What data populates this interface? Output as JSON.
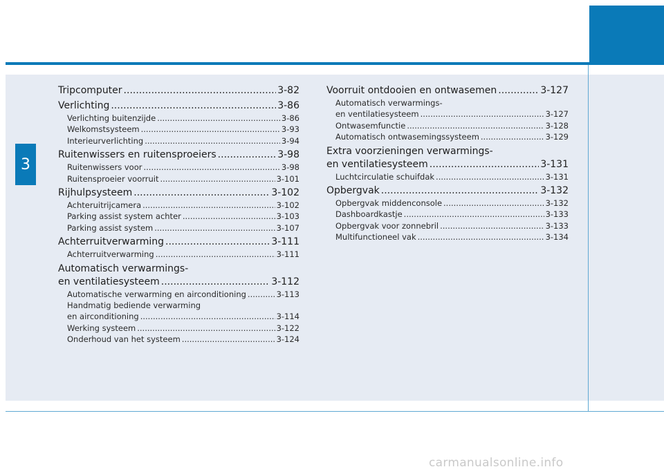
{
  "chapter": "3",
  "left": {
    "sections": [
      {
        "title": "Tripcomputer",
        "page": "3-82",
        "items": []
      },
      {
        "title": "Verlichting",
        "page": "3-86",
        "items": [
          {
            "title": "Verlichting buitenzijde",
            "page": "3-86"
          },
          {
            "title": "Welkomstsysteem",
            "page": "3-93"
          },
          {
            "title": "Interieurverlichting",
            "page": "3-94"
          }
        ]
      },
      {
        "title": "Ruitenwissers en ruitensproeiers",
        "page": "3-98",
        "items": [
          {
            "title": "Ruitenwissers voor",
            "page": "3-98"
          },
          {
            "title": "Ruitensproeier voorruit",
            "page": "3-101"
          }
        ]
      },
      {
        "title": "Rijhulpsysteem",
        "page": "3-102",
        "items": [
          {
            "title": "Achteruitrijcamera",
            "page": "3-102"
          },
          {
            "title": "Parking assist system achter",
            "page": "3-103"
          },
          {
            "title": "Parking assist system",
            "page": "3-107"
          }
        ]
      },
      {
        "title": "Achterruitverwarming",
        "page": "3-111",
        "items": [
          {
            "title": "Achterruitverwarming",
            "page": "3-111"
          }
        ]
      }
    ],
    "ventilation": {
      "title_line1": "Automatisch verwarmings-",
      "title_line2": "en ventilatiesysteem",
      "page": "3-112",
      "item1": {
        "title": "Automatische verwarming en airconditioning",
        "page": "3-113"
      },
      "item2_line1": "Handmatig bediende verwarming",
      "item2": {
        "title": "en airconditioning",
        "page": "3-114"
      },
      "item3": {
        "title": "Werking systeem",
        "page": "3-122"
      },
      "item4": {
        "title": "Onderhoud van het systeem",
        "page": "3-124"
      }
    }
  },
  "right": {
    "defrost": {
      "title": "Voorruit ontdooien en ontwasemen",
      "page": "3-127",
      "item1_line1": "Automatisch verwarmings-",
      "item1": {
        "title": "en ventilatiesysteem",
        "page": "3-127"
      },
      "item2": {
        "title": "Ontwasemfunctie",
        "page": "3-128"
      },
      "item3": {
        "title": "Automatisch ontwasemingssysteem",
        "page": "3-129"
      }
    },
    "extra": {
      "title_line1": "Extra voorzieningen verwarmings-",
      "title_line2": "en ventilatiesysteem",
      "page": "3-131",
      "item1": {
        "title": "Luchtcirculatie schuifdak",
        "page": "3-131"
      }
    },
    "storage": {
      "title": "Opbergvak",
      "page": "3-132",
      "items": [
        {
          "title": "Opbergvak middenconsole",
          "page": "3-132"
        },
        {
          "title": "Dashboardkastje",
          "page": "3-133"
        },
        {
          "title": "Opbergvak voor zonnebril",
          "page": "3-133"
        },
        {
          "title": "Multifunctioneel vak",
          "page": "3-134"
        }
      ]
    }
  },
  "watermark": "carmanualsonline.info",
  "colors": {
    "accent": "#0a7ab8",
    "panel": "#e6ebf3",
    "rule": "#5fa8d3"
  }
}
